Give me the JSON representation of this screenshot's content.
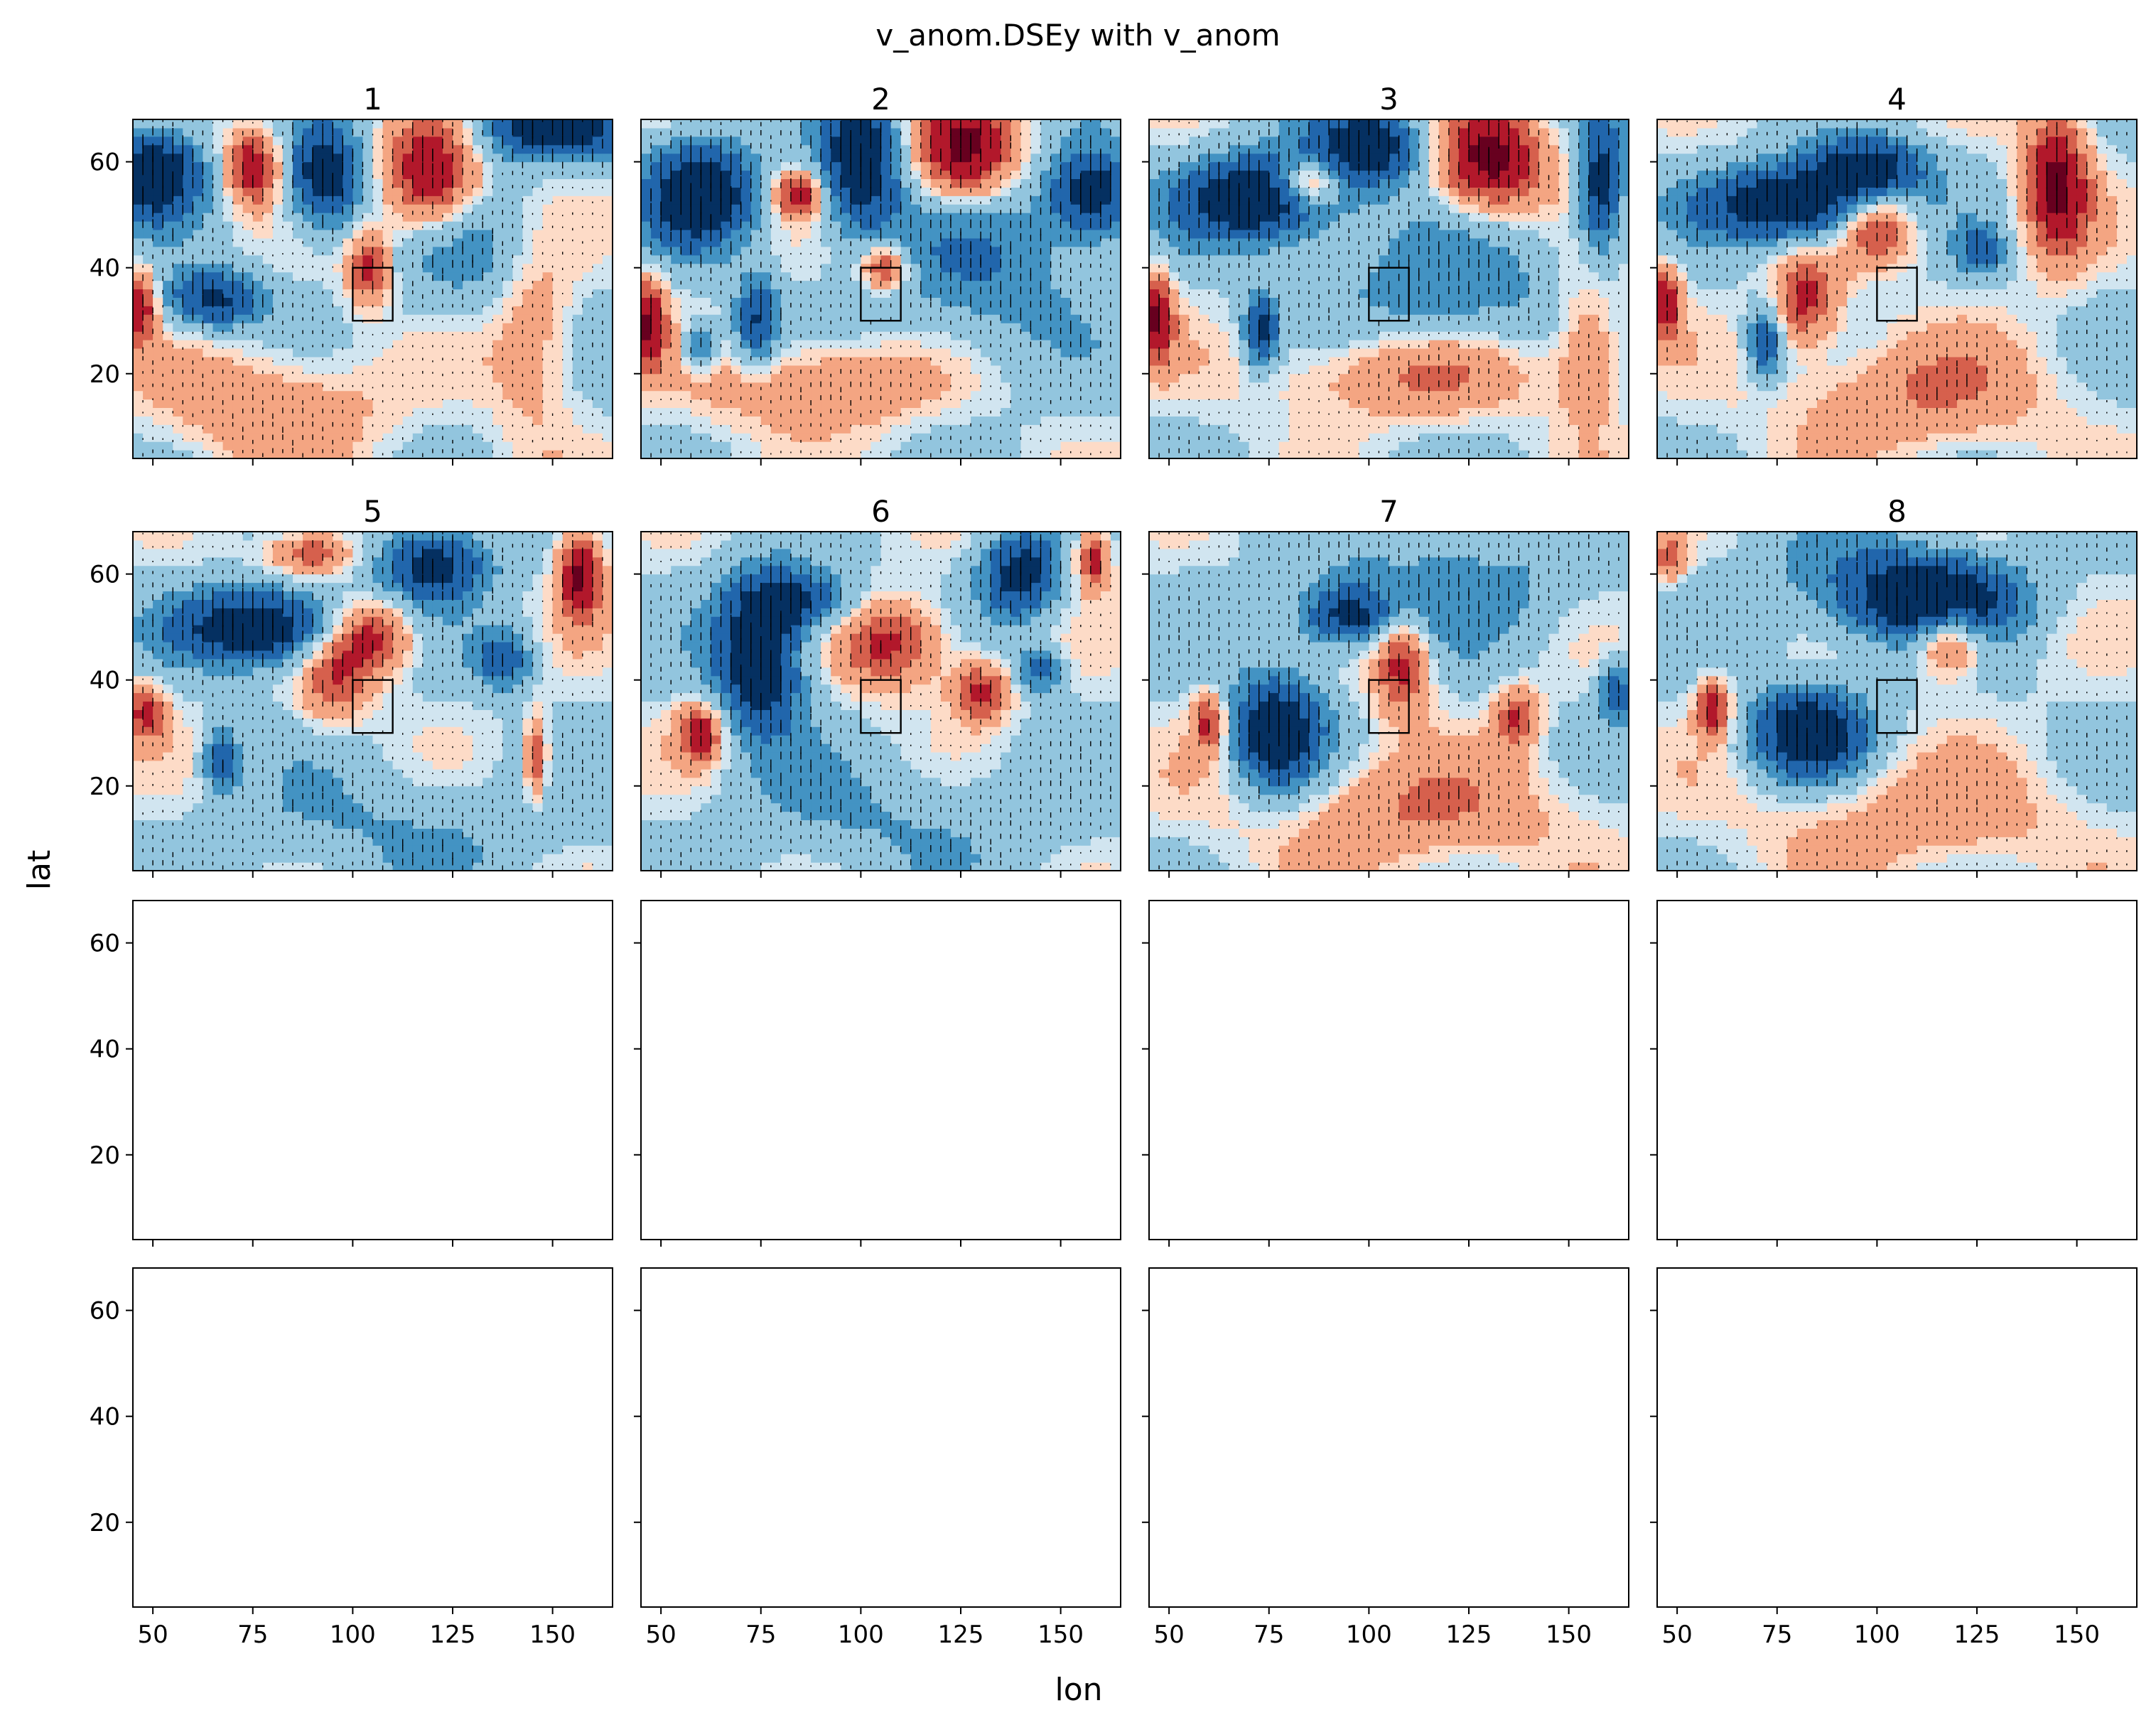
{
  "figure": {
    "suptitle": "v_anom.DSEy with v_anom",
    "xlabel": "lon",
    "ylabel": "lat"
  },
  "chart_data": {
    "type": "contour-grid",
    "title": "v_anom.DSEy with v_anom",
    "xlabel": "lon",
    "ylabel": "lat",
    "xlim": [
      45,
      165
    ],
    "ylim": [
      4,
      68
    ],
    "xticks": [
      50,
      75,
      100,
      125,
      150
    ],
    "yticks": [
      20,
      40,
      60
    ],
    "grid": false,
    "colormap": [
      "#053061",
      "#2166ac",
      "#4393c3",
      "#92c5de",
      "#d1e5f0",
      "#fddbc7",
      "#f4a582",
      "#d6604d",
      "#b2182b",
      "#67001f"
    ],
    "colors": {
      "neg_strong": "#053061",
      "neg_mid": "#2166ac",
      "neg_weak": "#4393c3",
      "neg_light": "#92c5de",
      "neg_pale": "#d1e5f0",
      "pos_pale": "#fddbc7",
      "pos_light": "#f4a582",
      "pos_weak": "#d6604d",
      "pos_mid": "#b2182b",
      "pos_strong": "#67001f",
      "box": "#000000",
      "axes": "#000000",
      "background": "#ffffff"
    },
    "reference_box": {
      "lon": [
        100,
        110
      ],
      "lat": [
        30,
        40
      ]
    },
    "panels": [
      {
        "title": "1",
        "has_data": true
      },
      {
        "title": "2",
        "has_data": true
      },
      {
        "title": "3",
        "has_data": true
      },
      {
        "title": "4",
        "has_data": true
      },
      {
        "title": "5",
        "has_data": true
      },
      {
        "title": "6",
        "has_data": true
      },
      {
        "title": "7",
        "has_data": true
      },
      {
        "title": "8",
        "has_data": true
      },
      {
        "title": "",
        "has_data": false
      },
      {
        "title": "",
        "has_data": false
      },
      {
        "title": "",
        "has_data": false
      },
      {
        "title": "",
        "has_data": false
      },
      {
        "title": "",
        "has_data": false
      },
      {
        "title": "",
        "has_data": false
      },
      {
        "title": "",
        "has_data": false
      },
      {
        "title": "",
        "has_data": false
      }
    ],
    "anomalies": [
      [
        {
          "lon": 50,
          "lat": 58,
          "amp": -1.3,
          "sx": 9,
          "sy": 6
        },
        {
          "lon": 75,
          "lat": 59,
          "amp": 1.1,
          "sx": 5,
          "sy": 5
        },
        {
          "lon": 93,
          "lat": 57,
          "amp": -1.2,
          "sx": 7,
          "sy": 7
        },
        {
          "lon": 120,
          "lat": 57,
          "amp": 1.3,
          "sx": 9,
          "sy": 8
        },
        {
          "lon": 150,
          "lat": 66,
          "amp": -1.2,
          "sx": 14,
          "sy": 4
        },
        {
          "lon": 65,
          "lat": 34,
          "amp": -1.0,
          "sx": 9,
          "sy": 4
        },
        {
          "lon": 104,
          "lat": 40,
          "amp": 0.9,
          "sx": 4,
          "sy": 5
        },
        {
          "lon": 47,
          "lat": 33,
          "amp": 1.0,
          "sx": 3,
          "sy": 5
        },
        {
          "lon": 80,
          "lat": 14,
          "amp": 0.5,
          "sx": 20,
          "sy": 8
        },
        {
          "lon": 145,
          "lat": 30,
          "amp": 0.5,
          "sx": 8,
          "sy": 15
        },
        {
          "lon": 130,
          "lat": 45,
          "amp": -0.5,
          "sx": 15,
          "sy": 10
        }
      ],
      [
        {
          "lon": 60,
          "lat": 54,
          "amp": -1.3,
          "sx": 10,
          "sy": 7
        },
        {
          "lon": 100,
          "lat": 60,
          "amp": -1.3,
          "sx": 7,
          "sy": 9
        },
        {
          "lon": 126,
          "lat": 62,
          "amp": 1.3,
          "sx": 9,
          "sy": 7
        },
        {
          "lon": 158,
          "lat": 54,
          "amp": -1.2,
          "sx": 8,
          "sy": 6
        },
        {
          "lon": 84,
          "lat": 54,
          "amp": 1.0,
          "sx": 4,
          "sy": 3
        },
        {
          "lon": 106,
          "lat": 40,
          "amp": 1.0,
          "sx": 4,
          "sy": 3
        },
        {
          "lon": 47,
          "lat": 30,
          "amp": 1.1,
          "sx": 3,
          "sy": 6
        },
        {
          "lon": 74,
          "lat": 30,
          "amp": -0.9,
          "sx": 4,
          "sy": 6
        },
        {
          "lon": 60,
          "lat": 25,
          "amp": -0.8,
          "sx": 3,
          "sy": 3
        },
        {
          "lon": 90,
          "lat": 18,
          "amp": 0.6,
          "sx": 20,
          "sy": 6
        },
        {
          "lon": 130,
          "lat": 40,
          "amp": -0.5,
          "sx": 18,
          "sy": 12
        }
      ],
      [
        {
          "lon": 73,
          "lat": 53,
          "amp": -1.3,
          "sx": 14,
          "sy": 6
        },
        {
          "lon": 100,
          "lat": 63,
          "amp": -1.2,
          "sx": 10,
          "sy": 5
        },
        {
          "lon": 85,
          "lat": 56,
          "amp": 1.0,
          "sx": 5,
          "sy": 3
        },
        {
          "lon": 130,
          "lat": 60,
          "amp": 1.3,
          "sx": 10,
          "sy": 7
        },
        {
          "lon": 158,
          "lat": 55,
          "amp": -1.2,
          "sx": 4,
          "sy": 9
        },
        {
          "lon": 47,
          "lat": 31,
          "amp": 1.1,
          "sx": 3,
          "sy": 6
        },
        {
          "lon": 73,
          "lat": 28,
          "amp": -1.0,
          "sx": 3,
          "sy": 5
        },
        {
          "lon": 110,
          "lat": 20,
          "amp": 0.6,
          "sx": 25,
          "sy": 6
        },
        {
          "lon": 155,
          "lat": 25,
          "amp": 0.6,
          "sx": 6,
          "sy": 10
        },
        {
          "lon": 120,
          "lat": 35,
          "amp": -0.5,
          "sx": 20,
          "sy": 10
        }
      ],
      [
        {
          "lon": 80,
          "lat": 52,
          "amp": -1.4,
          "sx": 16,
          "sy": 5
        },
        {
          "lon": 98,
          "lat": 59,
          "amp": -1.1,
          "sx": 10,
          "sy": 4
        },
        {
          "lon": 100,
          "lat": 48,
          "amp": 1.0,
          "sx": 7,
          "sy": 5
        },
        {
          "lon": 82,
          "lat": 34,
          "amp": 0.9,
          "sx": 6,
          "sy": 6
        },
        {
          "lon": 145,
          "lat": 56,
          "amp": 1.2,
          "sx": 6,
          "sy": 10
        },
        {
          "lon": 47,
          "lat": 34,
          "amp": 1.0,
          "sx": 3,
          "sy": 5
        },
        {
          "lon": 72,
          "lat": 26,
          "amp": -0.9,
          "sx": 3,
          "sy": 5
        },
        {
          "lon": 126,
          "lat": 43,
          "amp": -0.7,
          "sx": 4,
          "sy": 3
        },
        {
          "lon": 110,
          "lat": 16,
          "amp": 0.5,
          "sx": 25,
          "sy": 8
        }
      ],
      [
        {
          "lon": 77,
          "lat": 50,
          "amp": -1.4,
          "sx": 14,
          "sy": 5
        },
        {
          "lon": 120,
          "lat": 62,
          "amp": -1.1,
          "sx": 10,
          "sy": 5
        },
        {
          "lon": 90,
          "lat": 64,
          "amp": 0.8,
          "sx": 8,
          "sy": 3
        },
        {
          "lon": 105,
          "lat": 48,
          "amp": 1.0,
          "sx": 7,
          "sy": 5
        },
        {
          "lon": 95,
          "lat": 40,
          "amp": 0.7,
          "sx": 6,
          "sy": 6
        },
        {
          "lon": 157,
          "lat": 60,
          "amp": 1.2,
          "sx": 4,
          "sy": 6
        },
        {
          "lon": 67,
          "lat": 25,
          "amp": -0.9,
          "sx": 3,
          "sy": 4
        },
        {
          "lon": 138,
          "lat": 44,
          "amp": -0.8,
          "sx": 5,
          "sy": 4
        },
        {
          "lon": 48,
          "lat": 34,
          "amp": 0.8,
          "sx": 4,
          "sy": 4
        },
        {
          "lon": 146,
          "lat": 25,
          "amp": 0.8,
          "sx": 2,
          "sy": 6
        },
        {
          "lon": 110,
          "lat": 12,
          "amp": -0.3,
          "sx": 30,
          "sy": 8
        }
      ],
      [
        {
          "lon": 75,
          "lat": 44,
          "amp": -1.3,
          "sx": 8,
          "sy": 10
        },
        {
          "lon": 85,
          "lat": 55,
          "amp": -0.9,
          "sx": 10,
          "sy": 4
        },
        {
          "lon": 140,
          "lat": 60,
          "amp": -1.1,
          "sx": 7,
          "sy": 6
        },
        {
          "lon": 108,
          "lat": 47,
          "amp": 0.9,
          "sx": 10,
          "sy": 6
        },
        {
          "lon": 60,
          "lat": 30,
          "amp": 1.0,
          "sx": 4,
          "sy": 4
        },
        {
          "lon": 158,
          "lat": 63,
          "amp": 1.0,
          "sx": 3,
          "sy": 4
        },
        {
          "lon": 130,
          "lat": 38,
          "amp": 0.9,
          "sx": 5,
          "sy": 4
        },
        {
          "lon": 145,
          "lat": 42,
          "amp": -0.7,
          "sx": 4,
          "sy": 3
        },
        {
          "lon": 110,
          "lat": 14,
          "amp": -0.3,
          "sx": 30,
          "sy": 8
        }
      ],
      [
        {
          "lon": 77,
          "lat": 30,
          "amp": -1.3,
          "sx": 8,
          "sy": 8
        },
        {
          "lon": 95,
          "lat": 52,
          "amp": -1.0,
          "sx": 9,
          "sy": 4
        },
        {
          "lon": 108,
          "lat": 44,
          "amp": 1.0,
          "sx": 5,
          "sy": 7
        },
        {
          "lon": 60,
          "lat": 32,
          "amp": 0.9,
          "sx": 3,
          "sy": 4
        },
        {
          "lon": 137,
          "lat": 33,
          "amp": 0.8,
          "sx": 4,
          "sy": 4
        },
        {
          "lon": 162,
          "lat": 38,
          "amp": -0.8,
          "sx": 3,
          "sy": 4
        },
        {
          "lon": 120,
          "lat": 58,
          "amp": -0.4,
          "sx": 25,
          "sy": 8
        },
        {
          "lon": 110,
          "lat": 15,
          "amp": 0.5,
          "sx": 30,
          "sy": 8
        }
      ],
      [
        {
          "lon": 83,
          "lat": 30,
          "amp": -1.3,
          "sx": 10,
          "sy": 6
        },
        {
          "lon": 115,
          "lat": 55,
          "amp": -1.2,
          "sx": 14,
          "sy": 5
        },
        {
          "lon": 118,
          "lat": 48,
          "amp": 1.0,
          "sx": 6,
          "sy": 5
        },
        {
          "lon": 59,
          "lat": 35,
          "amp": 1.0,
          "sx": 3,
          "sy": 4
        },
        {
          "lon": 48,
          "lat": 63,
          "amp": 0.7,
          "sx": 3,
          "sy": 3
        },
        {
          "lon": 100,
          "lat": 58,
          "amp": -0.5,
          "sx": 20,
          "sy": 8
        },
        {
          "lon": 110,
          "lat": 14,
          "amp": 0.4,
          "sx": 30,
          "sy": 8
        }
      ]
    ]
  }
}
